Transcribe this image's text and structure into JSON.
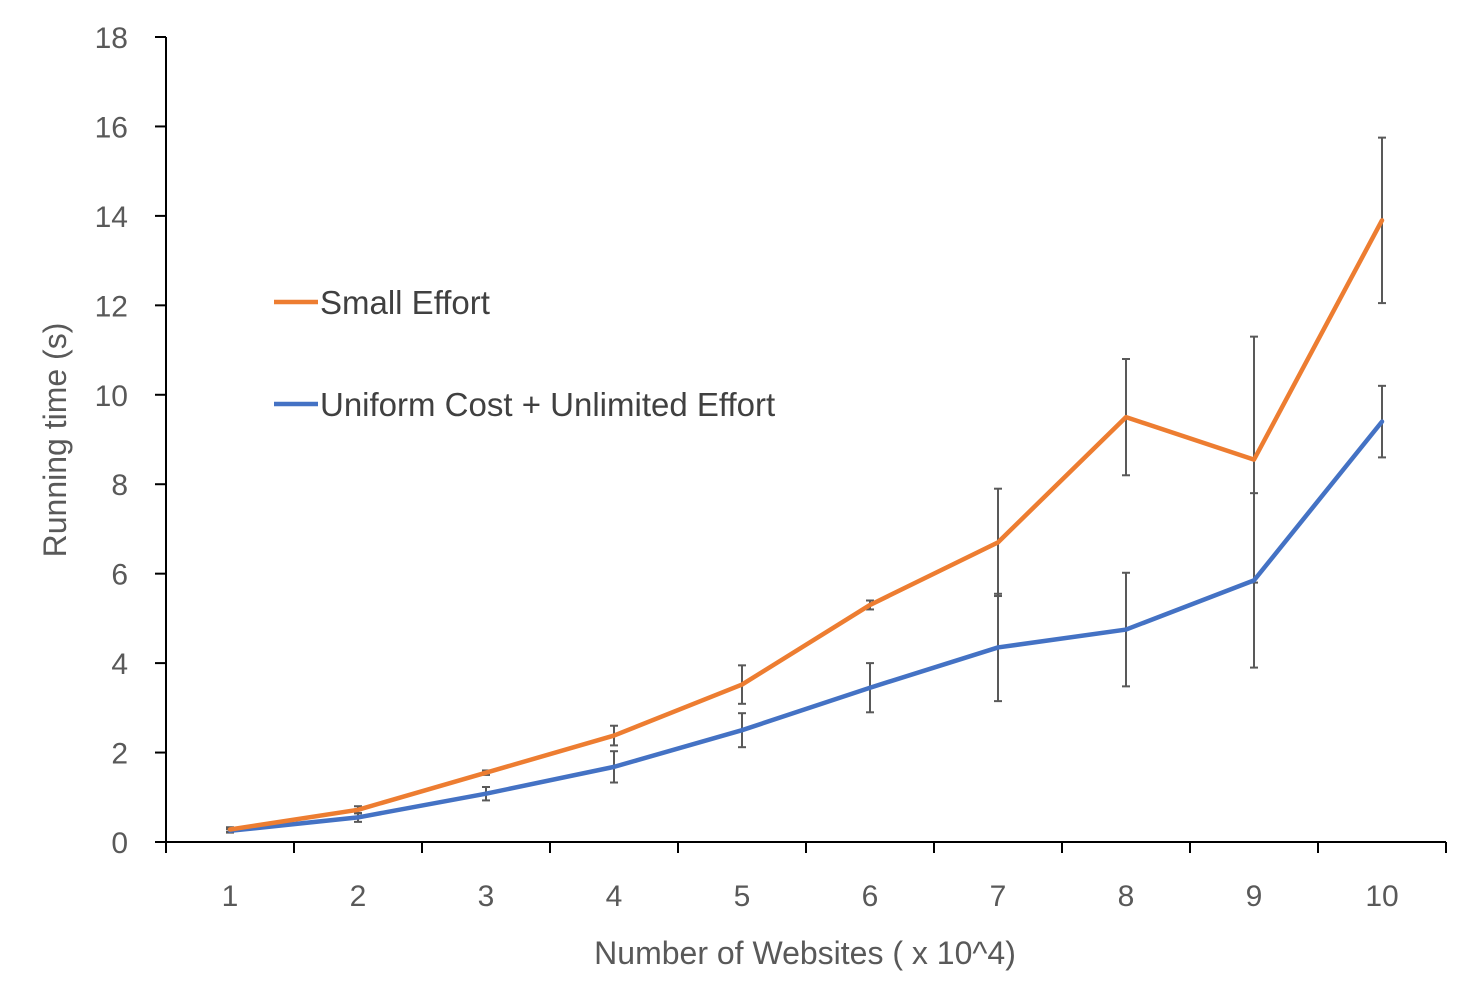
{
  "chart_data": {
    "type": "line",
    "xlabel": "Number of Websites ( x 10^4)",
    "ylabel": "Running time (s)",
    "categories": [
      "1",
      "2",
      "3",
      "4",
      "5",
      "6",
      "7",
      "8",
      "9",
      "10"
    ],
    "ylim": [
      0,
      18
    ],
    "yticks": [
      "0",
      "2",
      "4",
      "6",
      "8",
      "10",
      "12",
      "14",
      "16",
      "18"
    ],
    "grid": false,
    "legend_position": "upper-left",
    "series": [
      {
        "name": "Small Effort",
        "color": "#ED7D31",
        "values": [
          0.28,
          0.72,
          1.55,
          2.38,
          3.52,
          5.3,
          6.7,
          9.5,
          8.55,
          13.9
        ],
        "error": [
          0.05,
          0.08,
          0.05,
          0.22,
          0.43,
          0.1,
          1.2,
          1.3,
          2.75,
          1.85
        ]
      },
      {
        "name": "Uniform Cost + Unlimited Effort",
        "color": "#4472C4",
        "values": [
          0.25,
          0.55,
          1.08,
          1.68,
          2.5,
          3.45,
          4.35,
          4.75,
          5.85,
          9.4
        ],
        "error": [
          0.04,
          0.1,
          0.15,
          0.35,
          0.38,
          0.55,
          1.2,
          1.27,
          1.95,
          0.8
        ]
      }
    ]
  }
}
